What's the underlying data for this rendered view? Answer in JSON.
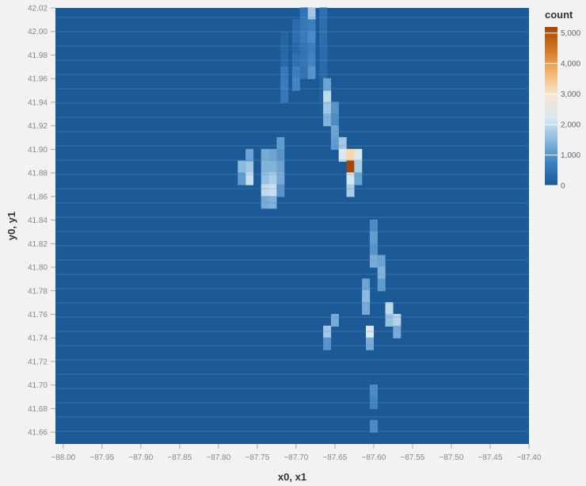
{
  "chart_data": {
    "type": "heatmap",
    "xlabel": "x0, x1",
    "ylabel": "y0, y1",
    "x_ticks": [
      "−88.00",
      "−87.95",
      "−87.90",
      "−87.85",
      "−87.80",
      "−87.75",
      "−87.70",
      "−87.65",
      "−87.60",
      "−87.55",
      "−87.50",
      "−87.45",
      "−87.40"
    ],
    "y_ticks": [
      "41.66",
      "41.68",
      "41.70",
      "41.72",
      "41.74",
      "41.76",
      "41.78",
      "41.80",
      "41.82",
      "41.84",
      "41.86",
      "41.88",
      "41.90",
      "41.92",
      "41.94",
      "41.96",
      "41.98",
      "42.00",
      "42.02"
    ],
    "xlim": [
      -88.01,
      -87.4
    ],
    "ylim": [
      41.65,
      42.02
    ],
    "legend": {
      "title": "count",
      "position": "top-right",
      "ticks": [
        "5,000",
        "4,000",
        "3,000",
        "2,000",
        "1,000",
        "0"
      ],
      "domain": [
        0,
        5200
      ]
    },
    "color_scale": [
      "#1b5a96",
      "#3d7fbf",
      "#8ab9dc",
      "#d9e8f2",
      "#f5e6cf",
      "#f4b46a",
      "#d27726",
      "#a34706"
    ],
    "cells": [
      [
        -87.665,
        42.015,
        450
      ],
      [
        -87.665,
        42.005,
        400
      ],
      [
        -87.665,
        41.995,
        380
      ],
      [
        -87.665,
        41.985,
        350
      ],
      [
        -87.665,
        41.975,
        350
      ],
      [
        -87.665,
        41.965,
        300
      ],
      [
        -87.665,
        41.955,
        200
      ],
      [
        -87.665,
        41.945,
        150
      ],
      [
        -87.665,
        41.935,
        100
      ],
      [
        -87.68,
        42.015,
        1700
      ],
      [
        -87.68,
        42.005,
        700
      ],
      [
        -87.68,
        41.995,
        900
      ],
      [
        -87.68,
        41.985,
        700
      ],
      [
        -87.68,
        41.975,
        800
      ],
      [
        -87.68,
        41.965,
        1000
      ],
      [
        -87.69,
        42.015,
        500
      ],
      [
        -87.69,
        42.005,
        600
      ],
      [
        -87.69,
        41.995,
        650
      ],
      [
        -87.69,
        41.985,
        500
      ],
      [
        -87.69,
        41.975,
        550
      ],
      [
        -87.69,
        41.965,
        500
      ],
      [
        -87.7,
        42.005,
        350
      ],
      [
        -87.7,
        41.995,
        400
      ],
      [
        -87.7,
        41.985,
        300
      ],
      [
        -87.7,
        41.975,
        450
      ],
      [
        -87.7,
        41.965,
        700
      ],
      [
        -87.7,
        41.955,
        800
      ],
      [
        -87.715,
        41.995,
        200
      ],
      [
        -87.715,
        41.985,
        250
      ],
      [
        -87.715,
        41.975,
        300
      ],
      [
        -87.715,
        41.965,
        600
      ],
      [
        -87.715,
        41.955,
        700
      ],
      [
        -87.715,
        41.945,
        600
      ],
      [
        -87.66,
        41.945,
        2000
      ],
      [
        -87.66,
        41.935,
        1700
      ],
      [
        -87.66,
        41.925,
        1400
      ],
      [
        -87.66,
        41.955,
        1200
      ],
      [
        -87.65,
        41.935,
        1000
      ],
      [
        -87.65,
        41.925,
        900
      ],
      [
        -87.65,
        41.915,
        1200
      ],
      [
        -87.65,
        41.905,
        1100
      ],
      [
        -87.64,
        41.905,
        1700
      ],
      [
        -87.64,
        41.895,
        2300
      ],
      [
        -87.63,
        41.895,
        3200
      ],
      [
        -87.63,
        41.885,
        5200
      ],
      [
        -87.63,
        41.875,
        2200
      ],
      [
        -87.63,
        41.865,
        1800
      ],
      [
        -87.62,
        41.895,
        2300
      ],
      [
        -87.62,
        41.885,
        1800
      ],
      [
        -87.62,
        41.875,
        1200
      ],
      [
        -87.74,
        41.895,
        1300
      ],
      [
        -87.74,
        41.885,
        1400
      ],
      [
        -87.74,
        41.875,
        1600
      ],
      [
        -87.74,
        41.865,
        2000
      ],
      [
        -87.74,
        41.855,
        1300
      ],
      [
        -87.73,
        41.895,
        1200
      ],
      [
        -87.73,
        41.885,
        1400
      ],
      [
        -87.73,
        41.875,
        1800
      ],
      [
        -87.73,
        41.865,
        2100
      ],
      [
        -87.73,
        41.855,
        1400
      ],
      [
        -87.72,
        41.905,
        1100
      ],
      [
        -87.72,
        41.895,
        1000
      ],
      [
        -87.72,
        41.885,
        1200
      ],
      [
        -87.72,
        41.875,
        1300
      ],
      [
        -87.72,
        41.865,
        1000
      ],
      [
        -87.76,
        41.885,
        1700
      ],
      [
        -87.76,
        41.875,
        2100
      ],
      [
        -87.76,
        41.895,
        1200
      ],
      [
        -87.77,
        41.885,
        1500
      ],
      [
        -87.77,
        41.875,
        1100
      ],
      [
        -87.6,
        41.835,
        900
      ],
      [
        -87.6,
        41.825,
        1100
      ],
      [
        -87.6,
        41.815,
        1000
      ],
      [
        -87.6,
        41.805,
        1300
      ],
      [
        -87.59,
        41.805,
        1200
      ],
      [
        -87.59,
        41.795,
        1400
      ],
      [
        -87.59,
        41.785,
        1100
      ],
      [
        -87.61,
        41.785,
        1200
      ],
      [
        -87.61,
        41.775,
        1500
      ],
      [
        -87.61,
        41.765,
        1300
      ],
      [
        -87.58,
        41.765,
        2000
      ],
      [
        -87.58,
        41.755,
        1600
      ],
      [
        -87.57,
        41.755,
        1900
      ],
      [
        -87.57,
        41.745,
        1300
      ],
      [
        -87.605,
        41.745,
        2300
      ],
      [
        -87.605,
        41.735,
        1300
      ],
      [
        -87.66,
        41.745,
        1700
      ],
      [
        -87.66,
        41.735,
        1000
      ],
      [
        -87.65,
        41.755,
        1300
      ],
      [
        -87.6,
        41.695,
        900
      ],
      [
        -87.6,
        41.685,
        800
      ],
      [
        -87.6,
        41.665,
        900
      ]
    ]
  }
}
